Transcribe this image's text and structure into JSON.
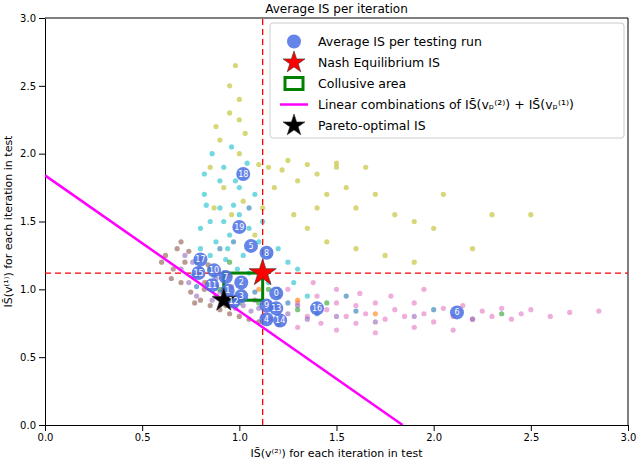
{
  "chart_data": {
    "type": "scatter",
    "title": "Average IS per iteration",
    "x_label": "IS̄(v⁽²⁾) for each iteration in test",
    "y_label": "IS̄(v⁽¹⁾) for each iteration in test",
    "xlim": [
      0,
      3
    ],
    "ylim": [
      0,
      3
    ],
    "xticks": [
      {
        "value": 0,
        "label": "0.0"
      },
      0.5,
      {
        "value": 1,
        "label": "1.0"
      },
      1.5,
      {
        "value": 2,
        "label": "2.0"
      },
      2.5,
      {
        "value": 3,
        "label": "3.0"
      }
    ],
    "yticks": [
      {
        "value": 0,
        "label": "0.0"
      },
      0.5,
      {
        "value": 1,
        "label": "1.0"
      },
      1.5,
      {
        "value": 2,
        "label": "2.0"
      },
      2.5,
      {
        "value": 3,
        "label": "3.0"
      }
    ],
    "legend": "upper right",
    "series": [
      {
        "name": "Average IS per testing run",
        "color": "#4a6fe3",
        "marker": "circle",
        "x": [
          1.19,
          0.94,
          1.01,
          1.01,
          1.14,
          1.06,
          2.12,
          0.93,
          1.14,
          1.14,
          0.87,
          0.86,
          0.97,
          1.19,
          1.21,
          0.79,
          1.4,
          0.8,
          1.02,
          1.0
        ],
        "y": [
          0.97,
          0.99,
          1.05,
          0.95,
          0.78,
          1.32,
          0.83,
          1.09,
          1.27,
          0.88,
          1.14,
          1.03,
          0.91,
          0.86,
          0.77,
          1.12,
          0.86,
          1.22,
          1.85,
          1.46
        ],
        "point_labels": [
          "0",
          "1",
          "2",
          "3",
          "4",
          "5",
          "6",
          "7",
          "8",
          "9",
          "10",
          "11",
          "12",
          "13",
          "14",
          "15",
          "16",
          "17",
          "18",
          "19"
        ]
      },
      {
        "name": "Nash Equilibrium IS",
        "color": "#ff0000",
        "marker": "star",
        "line_style": "dashed",
        "x": [
          1.12
        ],
        "y": [
          1.12
        ]
      },
      {
        "name": "Collusive area",
        "color": "#008000",
        "type": "rect",
        "x": [
          0.92,
          1.12
        ],
        "y": [
          0.92,
          1.12
        ]
      },
      {
        "name": "Linear combinations of IS̄(vₚ⁽²⁾) + IS̄(vₚ⁽¹⁾)",
        "color": "#ff00ff",
        "type": "line",
        "x": [
          0,
          1.84
        ],
        "y": [
          1.84,
          0
        ]
      },
      {
        "name": "Pareto-optimal IS",
        "color": "#000000",
        "marker": "star",
        "x": [
          0.92
        ],
        "y": [
          0.92
        ]
      }
    ],
    "scatter_groups": [
      {
        "color": "#bcbd22",
        "x": [
          0.85,
          0.9,
          0.95,
          0.88,
          1.0,
          1.0,
          1.1,
          0.92,
          1.15,
          1.22,
          1.25,
          1.3,
          1.35,
          1.4,
          1.45,
          1.5,
          1.55,
          1.6,
          1.7,
          1.8,
          1.9,
          2.0,
          1.65,
          1.0,
          0.95,
          0.98,
          1.03,
          0.96,
          1.02,
          1.12,
          1.28,
          1.35,
          1.45,
          1.6,
          1.75,
          1.9,
          2.2,
          2.3,
          2.5,
          1.18,
          1.4,
          1.08,
          2.05,
          0.87,
          1.5
        ],
        "y": [
          1.9,
          2.1,
          2.3,
          2.2,
          2.0,
          2.25,
          1.92,
          1.75,
          1.9,
          1.88,
          1.95,
          1.8,
          1.92,
          1.85,
          1.7,
          1.9,
          1.75,
          1.6,
          1.7,
          1.55,
          1.5,
          1.45,
          1.9,
          2.4,
          2.5,
          2.65,
          2.15,
          1.55,
          1.65,
          1.6,
          1.55,
          1.45,
          1.35,
          1.3,
          1.25,
          1.2,
          1.3,
          1.55,
          1.55,
          1.75,
          1.6,
          1.4,
          1.7,
          1.6,
          1.93
        ]
      },
      {
        "color": "#17becf",
        "x": [
          0.8,
          0.85,
          0.82,
          0.9,
          0.95,
          0.88,
          0.78,
          0.85,
          0.92,
          0.98,
          1.0,
          1.05,
          1.1,
          0.93,
          1.02,
          0.96,
          0.86,
          0.9,
          1.08,
          1.12,
          0.8,
          0.83,
          1.15,
          1.2,
          0.99,
          0.87,
          1.05,
          0.76,
          0.94,
          1.0,
          0.82,
          1.04,
          0.92,
          1.25,
          1.3,
          1.15,
          1.2,
          1.35,
          1.28,
          0.97
        ],
        "y": [
          1.3,
          1.5,
          1.7,
          1.6,
          1.4,
          1.35,
          1.2,
          1.25,
          1.9,
          1.8,
          1.55,
          1.45,
          1.35,
          1.22,
          1.25,
          2.05,
          2.0,
          1.8,
          1.7,
          1.5,
          1.45,
          1.62,
          1.25,
          1.3,
          1.15,
          1.1,
          1.12,
          1.1,
          1.3,
          1.75,
          1.85,
          1.93,
          1.5,
          1.2,
          1.15,
          1.05,
          1.0,
          0.95,
          1.05,
          1.62
        ]
      },
      {
        "color": "#e377c2",
        "x": [
          1.15,
          1.2,
          1.3,
          1.35,
          1.4,
          1.45,
          1.5,
          1.55,
          1.6,
          1.65,
          1.7,
          1.75,
          1.8,
          1.85,
          1.9,
          1.95,
          2.0,
          2.05,
          2.1,
          2.15,
          2.2,
          2.25,
          2.3,
          2.35,
          2.4,
          2.45,
          2.5,
          2.6,
          2.7,
          2.85,
          1.25,
          1.38,
          1.5,
          1.62,
          1.78,
          1.95,
          1.3,
          1.5,
          1.7,
          1.9,
          1.22,
          1.42,
          2.1,
          1.12,
          1.6
        ],
        "y": [
          0.9,
          0.85,
          0.9,
          0.8,
          0.95,
          0.85,
          0.9,
          0.8,
          0.88,
          0.82,
          0.9,
          0.78,
          0.85,
          0.8,
          0.9,
          0.82,
          0.76,
          0.86,
          0.8,
          0.88,
          0.78,
          0.84,
          0.8,
          0.86,
          0.78,
          0.82,
          0.85,
          0.8,
          0.83,
          0.84,
          1.0,
          1.05,
          1.0,
          0.97,
          0.95,
          1.0,
          0.72,
          0.7,
          0.68,
          0.72,
          0.78,
          0.75,
          0.7,
          0.8,
          0.75
        ]
      },
      {
        "color": "#8c564b",
        "x": [
          0.62,
          0.66,
          0.7,
          0.72,
          0.75,
          0.78,
          0.8,
          0.82,
          0.85,
          0.88,
          0.9,
          0.68,
          0.74,
          0.77,
          0.95,
          1.0,
          1.05,
          0.65,
          0.7,
          0.84,
          1.1,
          1.2,
          0.6,
          0.93,
          0.8
        ],
        "y": [
          1.25,
          1.15,
          1.05,
          1.2,
          0.98,
          1.1,
          0.92,
          1.0,
          0.88,
          0.95,
          0.85,
          1.3,
          1.28,
          0.9,
          0.82,
          0.8,
          0.78,
          1.08,
          1.35,
          1.18,
          0.76,
          0.74,
          1.2,
          0.88,
          1.22
        ]
      },
      {
        "color": "#9467bd",
        "x": [
          0.7,
          0.74,
          0.78,
          0.82,
          0.86,
          0.9,
          0.94,
          0.98,
          1.02,
          1.06,
          1.1,
          1.16,
          1.25,
          1.35,
          1.5,
          1.7,
          0.76,
          0.72,
          0.88,
          0.96,
          1.0,
          1.08,
          1.3,
          1.9,
          2.2
        ],
        "y": [
          1.15,
          1.05,
          0.95,
          1.05,
          0.92,
          0.98,
          0.9,
          0.86,
          0.88,
          0.84,
          0.86,
          0.78,
          0.82,
          0.78,
          0.8,
          0.76,
          1.2,
          1.25,
          1.08,
          1.02,
          0.95,
          0.92,
          0.88,
          0.8,
          0.78
        ]
      },
      {
        "color": "#2ca02c",
        "x": [
          0.9,
          1.0,
          1.1,
          1.2,
          0.85,
          1.3,
          1.45,
          2.35,
          0.95,
          1.15
        ],
        "y": [
          1.0,
          0.9,
          0.9,
          0.95,
          1.15,
          0.85,
          0.9,
          0.82,
          1.2,
          1.0
        ]
      },
      {
        "color": "#1f77b4",
        "x": [
          0.88,
          0.92,
          1.02,
          1.08,
          0.8,
          1.25,
          1.4,
          1.6,
          0.97,
          1.05,
          0.78,
          1.18,
          1.55,
          2.0,
          0.9
        ],
        "y": [
          1.02,
          1.12,
          0.92,
          0.98,
          1.15,
          0.9,
          0.82,
          0.84,
          1.35,
          1.6,
          1.02,
          0.88,
          0.95,
          0.85,
          1.3
        ]
      },
      {
        "color": "#ff7f0e",
        "x": [
          0.95,
          1.1,
          1.3,
          0.83,
          1.7
        ],
        "y": [
          1.1,
          1.0,
          0.92,
          1.05,
          0.82
        ]
      }
    ]
  }
}
